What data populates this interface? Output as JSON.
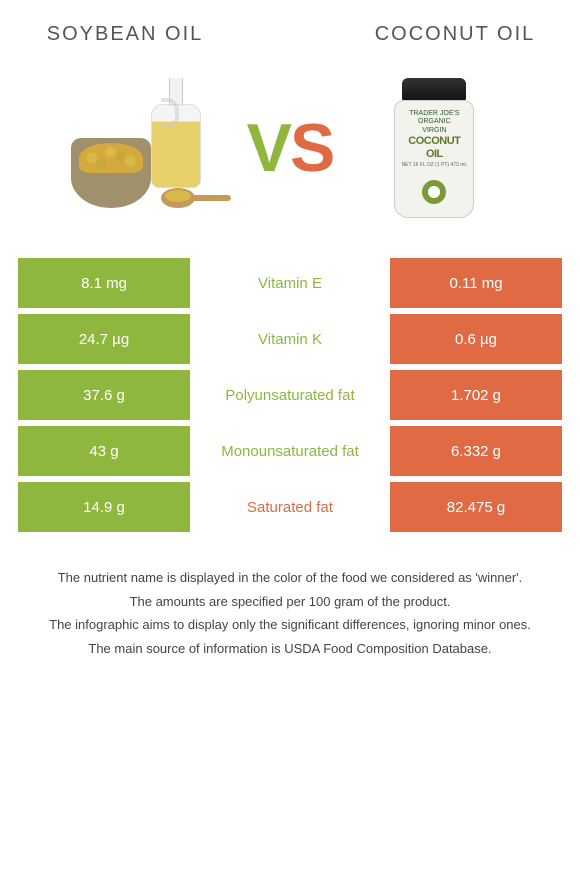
{
  "comparison": {
    "left_name": "SOYBEAN OIL",
    "right_name": "COCONUT OIL",
    "vs_text": "VS",
    "left_color": "#8fb73e",
    "right_color": "#e06a44",
    "winner_text_color_left": "#8fb73e",
    "winner_text_color_right": "#e06a44"
  },
  "rows": [
    {
      "left": "8.1 mg",
      "label": "Vitamin E",
      "right": "0.11 mg",
      "winner": "left"
    },
    {
      "left": "24.7 µg",
      "label": "Vitamin K",
      "right": "0.6 µg",
      "winner": "left"
    },
    {
      "left": "37.6 g",
      "label": "Polyunsaturated fat",
      "right": "1.702 g",
      "winner": "left"
    },
    {
      "left": "43 g",
      "label": "Monounsaturated fat",
      "right": "6.332 g",
      "winner": "left"
    },
    {
      "left": "14.9 g",
      "label": "Saturated fat",
      "right": "82.475 g",
      "winner": "right"
    }
  ],
  "jar": {
    "line1": "TRADER JOE'S",
    "line2": "ORGANIC",
    "line3": "VIRGIN",
    "big1": "COCONUT",
    "big2": "OIL",
    "net": "NET 16 FL OZ (1 PT) 473 mL"
  },
  "footer": {
    "l1": "The nutrient name is displayed in the color of the food we considered as 'winner'.",
    "l2": "The amounts are specified per 100 gram of the product.",
    "l3": "The infographic aims to display only the significant differences, ignoring minor ones.",
    "l4": "The main source of information is USDA Food Composition Database."
  }
}
